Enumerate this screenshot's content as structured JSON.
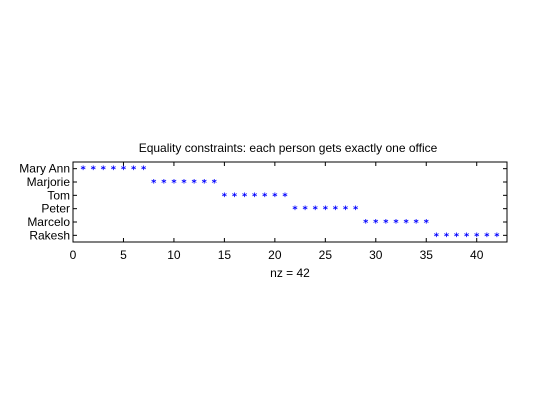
{
  "chart_data": {
    "type": "scatter",
    "title": "Equality constraints: each person gets exactly one office",
    "xlabel": "nz = 42",
    "ylabel": "",
    "xlim": [
      0,
      43
    ],
    "ylim": [
      0.5,
      6.5
    ],
    "x_ticks": [
      0,
      5,
      10,
      15,
      20,
      25,
      30,
      35,
      40
    ],
    "y_tick_labels": [
      "Mary Ann",
      "Marjorie",
      "Tom",
      "Peter",
      "Marcelo",
      "Rakesh"
    ],
    "grid": false,
    "marker": "*",
    "marker_color": "#0000ff",
    "axis_color": "#000000",
    "series": [
      {
        "x": [
          1,
          2,
          3,
          4,
          5,
          6,
          7
        ],
        "y": 1
      },
      {
        "x": [
          8,
          9,
          10,
          11,
          12,
          13,
          14
        ],
        "y": 2
      },
      {
        "x": [
          15,
          16,
          17,
          18,
          19,
          20,
          21
        ],
        "y": 3
      },
      {
        "x": [
          22,
          23,
          24,
          25,
          26,
          27,
          28
        ],
        "y": 4
      },
      {
        "x": [
          29,
          30,
          31,
          32,
          33,
          34,
          35
        ],
        "y": 5
      },
      {
        "x": [
          36,
          37,
          38,
          39,
          40,
          41,
          42
        ],
        "y": 6
      }
    ]
  }
}
